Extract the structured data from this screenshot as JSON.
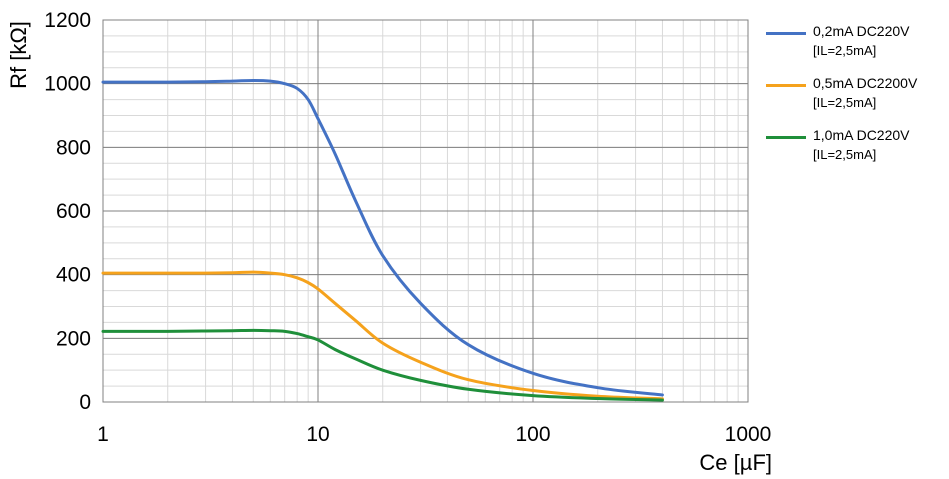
{
  "chart_data": {
    "type": "line",
    "xscale": "log",
    "xlim": [
      1,
      1000
    ],
    "ylim": [
      0,
      1200
    ],
    "xticks": [
      "1",
      "10",
      "100",
      "1000"
    ],
    "yticks": [
      "0",
      "200",
      "400",
      "600",
      "800",
      "1000",
      "1200"
    ],
    "xlabel": "Ce [µF]",
    "ylabel": "Rf [kΩ]",
    "grid": true,
    "legend_position": "right",
    "series": [
      {
        "name": "0,2mA DC220V",
        "subname": "[IL=2,5mA]",
        "color": "#4472c4",
        "x": [
          1,
          2,
          3,
          4,
          5,
          6,
          7,
          8,
          9,
          10,
          12,
          15,
          20,
          30,
          50,
          100,
          200,
          400
        ],
        "y": [
          1005,
          1005,
          1006,
          1008,
          1010,
          1008,
          1000,
          985,
          950,
          890,
          780,
          630,
          460,
          310,
          180,
          90,
          45,
          22
        ]
      },
      {
        "name": "0,5mA DC2200V",
        "subname": "[IL=2,5mA]",
        "color": "#f5a21c",
        "x": [
          1,
          2,
          3,
          4,
          5,
          6,
          7,
          8,
          9,
          10,
          12,
          15,
          20,
          30,
          50,
          100,
          200,
          400
        ],
        "y": [
          405,
          405,
          405,
          406,
          408,
          405,
          400,
          390,
          375,
          355,
          310,
          255,
          185,
          125,
          70,
          36,
          18,
          10
        ]
      },
      {
        "name": "1,0mA DC220V",
        "subname": "[IL=2,5mA]",
        "color": "#1f8f3a",
        "x": [
          1,
          2,
          3,
          4,
          5,
          6,
          7,
          8,
          9,
          10,
          12,
          15,
          20,
          30,
          50,
          100,
          200,
          400
        ],
        "y": [
          222,
          222,
          223,
          224,
          225,
          224,
          222,
          215,
          205,
          195,
          165,
          135,
          100,
          68,
          40,
          20,
          11,
          6
        ]
      }
    ]
  }
}
